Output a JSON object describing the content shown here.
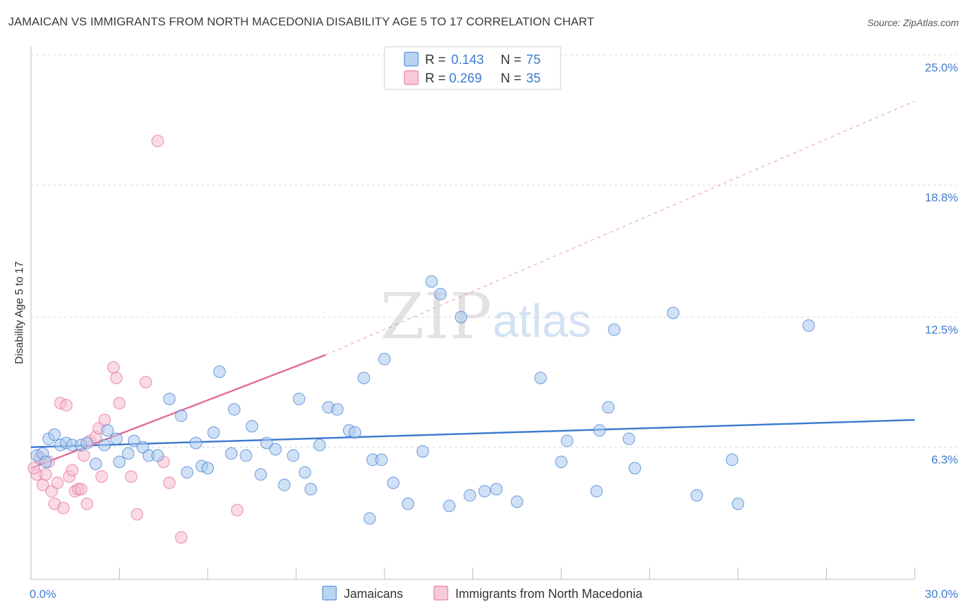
{
  "title": "JAMAICAN VS IMMIGRANTS FROM NORTH MACEDONIA DISABILITY AGE 5 TO 17 CORRELATION CHART",
  "source": "Source: ZipAtlas.com",
  "watermark": {
    "zip": "ZIP",
    "atlas": "atlas"
  },
  "colors": {
    "blue": "#3d7bd0",
    "blue_fill": "#a9c8ee",
    "pink": "#e36b9a",
    "pink_fill": "#f6bcd0",
    "grid": "#d9d9d9"
  },
  "legend_top": {
    "r_label": "R =",
    "n_label": "N =",
    "rows": [
      {
        "r": "0.143",
        "n": "75",
        "series": "blue"
      },
      {
        "r": "0.269",
        "n": "35",
        "series": "pink"
      }
    ]
  },
  "chart_data": {
    "type": "scatter",
    "title": "JAMAICAN VS IMMIGRANTS FROM NORTH MACEDONIA DISABILITY AGE 5 TO 17 CORRELATION CHART",
    "xlabel": "",
    "ylabel": "Disability Age 5 to 17",
    "xlim": [
      0,
      30
    ],
    "ylim": [
      0,
      25.0
    ],
    "x_tick_labels": [
      "0.0%",
      "30.0%"
    ],
    "y_ticks": [
      6.3,
      12.5,
      18.8,
      25.0
    ],
    "y_tick_labels": [
      "6.3%",
      "12.5%",
      "18.8%",
      "25.0%"
    ],
    "grid": true,
    "legend_position": "bottom",
    "series": [
      {
        "name": "Jamaicans",
        "color": "#3d7bd0",
        "trend": {
          "x": [
            0,
            30
          ],
          "y": [
            6.3,
            7.6
          ],
          "dashed_extension": false
        },
        "points": [
          [
            0.2,
            5.9
          ],
          [
            0.4,
            6.0
          ],
          [
            0.5,
            5.6
          ],
          [
            0.6,
            6.7
          ],
          [
            0.8,
            6.9
          ],
          [
            1.0,
            6.4
          ],
          [
            1.2,
            6.5
          ],
          [
            1.4,
            6.4
          ],
          [
            1.7,
            6.4
          ],
          [
            1.9,
            6.5
          ],
          [
            2.2,
            5.5
          ],
          [
            2.5,
            6.4
          ],
          [
            2.6,
            7.1
          ],
          [
            2.9,
            6.7
          ],
          [
            3.0,
            5.6
          ],
          [
            3.3,
            6.0
          ],
          [
            3.5,
            6.6
          ],
          [
            3.8,
            6.3
          ],
          [
            4.0,
            5.9
          ],
          [
            4.3,
            5.9
          ],
          [
            4.7,
            8.6
          ],
          [
            5.1,
            7.8
          ],
          [
            5.3,
            5.1
          ],
          [
            5.6,
            6.5
          ],
          [
            5.8,
            5.4
          ],
          [
            6.0,
            5.3
          ],
          [
            6.2,
            7.0
          ],
          [
            6.4,
            9.9
          ],
          [
            6.8,
            6.0
          ],
          [
            6.9,
            8.1
          ],
          [
            7.3,
            5.9
          ],
          [
            7.5,
            7.3
          ],
          [
            7.8,
            5.0
          ],
          [
            8.0,
            6.5
          ],
          [
            8.3,
            6.2
          ],
          [
            8.6,
            4.5
          ],
          [
            8.9,
            5.9
          ],
          [
            9.1,
            8.6
          ],
          [
            9.3,
            5.1
          ],
          [
            9.5,
            4.3
          ],
          [
            9.8,
            6.4
          ],
          [
            10.1,
            8.2
          ],
          [
            10.4,
            8.1
          ],
          [
            10.8,
            7.1
          ],
          [
            11.0,
            7.0
          ],
          [
            11.3,
            9.6
          ],
          [
            11.5,
            2.9
          ],
          [
            11.6,
            5.7
          ],
          [
            11.9,
            5.7
          ],
          [
            12.0,
            10.5
          ],
          [
            12.3,
            4.6
          ],
          [
            12.8,
            3.6
          ],
          [
            13.3,
            6.1
          ],
          [
            13.6,
            14.2
          ],
          [
            13.9,
            13.6
          ],
          [
            14.2,
            3.5
          ],
          [
            14.6,
            12.5
          ],
          [
            14.9,
            4.0
          ],
          [
            15.4,
            4.2
          ],
          [
            15.8,
            4.3
          ],
          [
            16.5,
            3.7
          ],
          [
            17.3,
            9.6
          ],
          [
            18.0,
            5.6
          ],
          [
            18.2,
            6.6
          ],
          [
            19.2,
            4.2
          ],
          [
            19.3,
            7.1
          ],
          [
            19.6,
            8.2
          ],
          [
            19.8,
            11.9
          ],
          [
            20.3,
            6.7
          ],
          [
            20.5,
            5.3
          ],
          [
            21.8,
            12.7
          ],
          [
            22.6,
            4.0
          ],
          [
            23.8,
            5.7
          ],
          [
            24.0,
            3.6
          ],
          [
            26.4,
            12.1
          ]
        ]
      },
      {
        "name": "Immigrants from North Macedonia",
        "color": "#e36b9a",
        "trend": {
          "x": [
            0,
            10
          ],
          "y": [
            5.3,
            10.7
          ],
          "dashed_extension": true,
          "dashed_to": [
            30,
            22.8
          ]
        },
        "points": [
          [
            0.2,
            5.0
          ],
          [
            0.3,
            5.8
          ],
          [
            0.4,
            4.5
          ],
          [
            0.5,
            5.0
          ],
          [
            0.6,
            5.6
          ],
          [
            0.7,
            4.2
          ],
          [
            0.8,
            3.6
          ],
          [
            0.9,
            4.6
          ],
          [
            1.0,
            8.4
          ],
          [
            1.1,
            3.4
          ],
          [
            1.2,
            8.3
          ],
          [
            1.3,
            4.9
          ],
          [
            1.4,
            5.2
          ],
          [
            1.5,
            4.2
          ],
          [
            1.6,
            4.3
          ],
          [
            1.7,
            4.3
          ],
          [
            1.8,
            5.9
          ],
          [
            1.9,
            3.6
          ],
          [
            2.0,
            6.6
          ],
          [
            2.2,
            6.8
          ],
          [
            2.3,
            7.2
          ],
          [
            2.4,
            4.9
          ],
          [
            2.5,
            7.6
          ],
          [
            2.8,
            10.1
          ],
          [
            2.9,
            9.6
          ],
          [
            3.0,
            8.4
          ],
          [
            3.4,
            4.9
          ],
          [
            3.6,
            3.1
          ],
          [
            3.9,
            9.4
          ],
          [
            4.3,
            20.9
          ],
          [
            4.5,
            5.6
          ],
          [
            4.7,
            4.6
          ],
          [
            5.1,
            2.0
          ],
          [
            7.0,
            3.3
          ],
          [
            0.1,
            5.3
          ]
        ]
      }
    ]
  },
  "legend_bottom": {
    "items": [
      {
        "label": "Jamaicans",
        "series": "blue"
      },
      {
        "label": "Immigrants from North Macedonia",
        "series": "pink"
      }
    ]
  }
}
